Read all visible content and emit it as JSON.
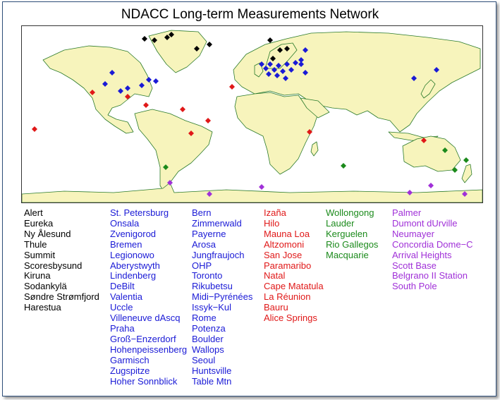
{
  "title": "NDACC Long-term Measurements Network",
  "colors": {
    "black": "#000000",
    "blue": "#1a1ad6",
    "red": "#e01818",
    "green": "#1b8a1b",
    "purple": "#a030d8",
    "land": "#f7f4bc",
    "coast": "#2a7a2a"
  },
  "station_groups": [
    {
      "color": "black",
      "stations": [
        "Alert",
        "Eureka",
        "Ny Ålesund",
        "Thule",
        "Summit",
        "Scoresbysund",
        "Kiruna",
        "Sodankylä",
        "Søndre Strømfjord",
        "Harestua"
      ]
    },
    {
      "color": "blue",
      "stations": [
        "St. Petersburg",
        "Onsala",
        "Zvenigorod",
        "Bremen",
        "Legionowo",
        "Aberystwyth",
        "Lindenberg",
        "DeBilt",
        "Valentia",
        "Uccle",
        "Villeneuve dAscq",
        "Praha",
        "Groß−Enzerdorf",
        "Hohenpeissenberg",
        "Garmisch",
        "Zugspitze",
        "Hoher Sonnblick"
      ]
    },
    {
      "color": "blue",
      "stations": [
        "Bern",
        "Zimmerwald",
        "Payerne",
        "Arosa",
        "Jungfraujoch",
        "OHP",
        "Toronto",
        "Rikubetsu",
        "Midi−Pyrénées",
        "Issyk−Kul",
        "Rome",
        "Potenza",
        "Boulder",
        "Wallops",
        "Seoul",
        "Huntsville",
        "Table Mtn"
      ]
    },
    {
      "color": "red",
      "stations": [
        "Izaña",
        "Hilo",
        "Mauna Loa",
        "Altzomoni",
        "San Jose",
        "Paramaribo",
        "Natal",
        "Cape Matatula",
        "La Réunion",
        "Bauru",
        "Alice Springs"
      ]
    },
    {
      "color": "green",
      "stations": [
        "Wollongong",
        "Lauder",
        "Kerguelen",
        "Rio Gallegos",
        "Macquarie"
      ]
    },
    {
      "color": "purple",
      "stations": [
        "Palmer",
        "Dumont dUrville",
        "Neumayer",
        "Concordia Dome−C",
        "Arrival Heights",
        "Scott Base",
        "Belgrano II Station",
        "South Pole"
      ]
    }
  ]
}
